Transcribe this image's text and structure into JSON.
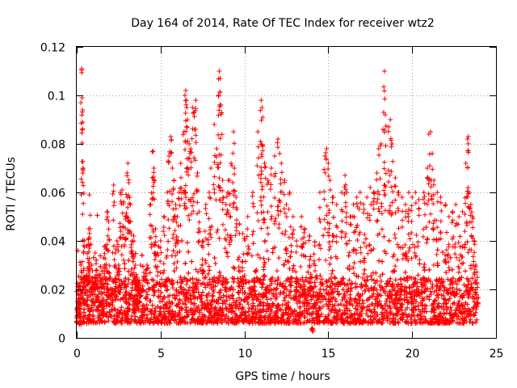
{
  "chart_data": {
    "type": "scatter",
    "title": "Day 164 of 2014, Rate Of TEC Index for receiver wtz2",
    "xlabel": "GPS time / hours",
    "ylabel": "ROTI / TECUs",
    "xlim": [
      0,
      25
    ],
    "ylim": [
      0,
      0.12
    ],
    "x_ticks": [
      0,
      5,
      10,
      15,
      20,
      25
    ],
    "y_ticks": [
      0,
      0.02,
      0.04,
      0.06,
      0.08,
      0.1,
      0.12
    ],
    "x_tick_labels": [
      "0",
      "5",
      "10",
      "15",
      "20",
      "25"
    ],
    "y_tick_labels": [
      "0",
      "0.02",
      "0.04",
      "0.06",
      "0.08",
      "0.1",
      "0.12"
    ],
    "grid": true,
    "marker": "plus",
    "marker_color": "#ff0000",
    "x_range_of_data": [
      0,
      23.9
    ],
    "baseline_band": [
      0.006,
      0.025
    ],
    "series": [
      {
        "name": "ROTI",
        "color": "#ff0000",
        "points": [
          [
            0.05,
            0.012
          ],
          [
            0.1,
            0.018
          ],
          [
            0.15,
            0.022
          ],
          [
            0.2,
            0.009
          ],
          [
            0.25,
            0.03
          ],
          [
            0.3,
            0.111
          ],
          [
            0.32,
            0.099
          ],
          [
            0.35,
            0.094
          ],
          [
            0.38,
            0.07
          ],
          [
            0.4,
            0.035
          ],
          [
            0.45,
            0.04
          ],
          [
            0.5,
            0.025
          ],
          [
            0.6,
            0.038
          ],
          [
            0.7,
            0.041
          ],
          [
            0.75,
            0.059
          ],
          [
            0.8,
            0.045
          ],
          [
            0.9,
            0.03
          ],
          [
            1.0,
            0.022
          ],
          [
            1.1,
            0.035
          ],
          [
            1.2,
            0.028
          ],
          [
            1.3,
            0.018
          ],
          [
            1.4,
            0.026
          ],
          [
            1.5,
            0.021
          ],
          [
            1.6,
            0.033
          ],
          [
            1.7,
            0.038
          ],
          [
            1.8,
            0.052
          ],
          [
            1.9,
            0.048
          ],
          [
            2.0,
            0.025
          ],
          [
            2.1,
            0.02
          ],
          [
            2.2,
            0.063
          ],
          [
            2.3,
            0.035
          ],
          [
            2.4,
            0.04
          ],
          [
            2.5,
            0.03
          ],
          [
            2.6,
            0.06
          ],
          [
            2.7,
            0.061
          ],
          [
            2.8,
            0.056
          ],
          [
            2.9,
            0.05
          ],
          [
            3.0,
            0.068
          ],
          [
            3.05,
            0.072
          ],
          [
            3.1,
            0.064
          ],
          [
            3.2,
            0.055
          ],
          [
            3.3,
            0.04
          ],
          [
            3.4,
            0.042
          ],
          [
            3.5,
            0.03
          ],
          [
            3.6,
            0.025
          ],
          [
            3.7,
            0.022
          ],
          [
            3.8,
            0.03
          ],
          [
            4.0,
            0.027
          ],
          [
            4.2,
            0.03
          ],
          [
            4.4,
            0.055
          ],
          [
            4.5,
            0.066
          ],
          [
            4.55,
            0.077
          ],
          [
            4.6,
            0.07
          ],
          [
            4.7,
            0.045
          ],
          [
            4.8,
            0.035
          ],
          [
            5.0,
            0.04
          ],
          [
            5.2,
            0.05
          ],
          [
            5.4,
            0.06
          ],
          [
            5.5,
            0.075
          ],
          [
            5.6,
            0.083
          ],
          [
            5.7,
            0.07
          ],
          [
            5.8,
            0.065
          ],
          [
            5.9,
            0.055
          ],
          [
            6.0,
            0.05
          ],
          [
            6.1,
            0.06
          ],
          [
            6.2,
            0.072
          ],
          [
            6.4,
            0.085
          ],
          [
            6.45,
            0.1
          ],
          [
            6.5,
            0.102
          ],
          [
            6.55,
            0.098
          ],
          [
            6.6,
            0.09
          ],
          [
            6.7,
            0.08
          ],
          [
            6.8,
            0.078
          ],
          [
            6.9,
            0.095
          ],
          [
            7.0,
            0.093
          ],
          [
            7.1,
            0.098
          ],
          [
            7.2,
            0.068
          ],
          [
            7.3,
            0.052
          ],
          [
            7.5,
            0.04
          ],
          [
            7.7,
            0.055
          ],
          [
            7.9,
            0.06
          ],
          [
            8.0,
            0.07
          ],
          [
            8.2,
            0.088
          ],
          [
            8.35,
            0.078
          ],
          [
            8.45,
            0.1
          ],
          [
            8.5,
            0.11
          ],
          [
            8.55,
            0.107
          ],
          [
            8.6,
            0.096
          ],
          [
            8.7,
            0.065
          ],
          [
            8.9,
            0.055
          ],
          [
            9.0,
            0.06
          ],
          [
            9.1,
            0.065
          ],
          [
            9.2,
            0.072
          ],
          [
            9.35,
            0.085
          ],
          [
            9.4,
            0.07
          ],
          [
            9.5,
            0.058
          ],
          [
            9.7,
            0.047
          ],
          [
            9.9,
            0.043
          ],
          [
            10.2,
            0.05
          ],
          [
            10.5,
            0.06
          ],
          [
            10.8,
            0.085
          ],
          [
            10.95,
            0.081
          ],
          [
            11.0,
            0.098
          ],
          [
            11.05,
            0.095
          ],
          [
            11.1,
            0.079
          ],
          [
            11.2,
            0.072
          ],
          [
            11.4,
            0.065
          ],
          [
            11.6,
            0.07
          ],
          [
            11.8,
            0.075
          ],
          [
            12.0,
            0.082
          ],
          [
            12.1,
            0.076
          ],
          [
            12.2,
            0.072
          ],
          [
            12.4,
            0.065
          ],
          [
            12.5,
            0.055
          ],
          [
            12.7,
            0.06
          ],
          [
            12.9,
            0.05
          ],
          [
            13.1,
            0.04
          ],
          [
            13.4,
            0.05
          ],
          [
            13.6,
            0.045
          ],
          [
            13.9,
            0.042
          ],
          [
            14.2,
            0.038
          ],
          [
            14.5,
            0.06
          ],
          [
            14.8,
            0.075
          ],
          [
            14.9,
            0.078
          ],
          [
            15.0,
            0.072
          ],
          [
            15.1,
            0.065
          ],
          [
            15.3,
            0.058
          ],
          [
            15.5,
            0.055
          ],
          [
            15.8,
            0.06
          ],
          [
            16.0,
            0.067
          ],
          [
            16.1,
            0.06
          ],
          [
            16.3,
            0.05
          ],
          [
            16.5,
            0.055
          ],
          [
            16.7,
            0.058
          ],
          [
            16.9,
            0.06
          ],
          [
            17.1,
            0.055
          ],
          [
            17.3,
            0.058
          ],
          [
            17.5,
            0.062
          ],
          [
            17.7,
            0.06
          ],
          [
            17.9,
            0.068
          ],
          [
            18.0,
            0.078
          ],
          [
            18.15,
            0.08
          ],
          [
            18.3,
            0.093
          ],
          [
            18.35,
            0.11
          ],
          [
            18.4,
            0.092
          ],
          [
            18.6,
            0.087
          ],
          [
            18.7,
            0.09
          ],
          [
            18.8,
            0.08
          ],
          [
            19.0,
            0.066
          ],
          [
            19.2,
            0.06
          ],
          [
            19.4,
            0.058
          ],
          [
            19.6,
            0.055
          ],
          [
            19.8,
            0.06
          ],
          [
            20.0,
            0.058
          ],
          [
            20.2,
            0.06
          ],
          [
            20.4,
            0.057
          ],
          [
            20.7,
            0.06
          ],
          [
            20.9,
            0.07
          ],
          [
            21.0,
            0.084
          ],
          [
            21.1,
            0.085
          ],
          [
            21.2,
            0.076
          ],
          [
            21.3,
            0.065
          ],
          [
            21.5,
            0.06
          ],
          [
            21.7,
            0.058
          ],
          [
            22.0,
            0.055
          ],
          [
            22.2,
            0.05
          ],
          [
            22.4,
            0.052
          ],
          [
            22.6,
            0.055
          ],
          [
            22.8,
            0.05
          ],
          [
            23.0,
            0.052
          ],
          [
            23.2,
            0.072
          ],
          [
            23.3,
            0.082
          ],
          [
            23.35,
            0.083
          ],
          [
            23.4,
            0.06
          ],
          [
            23.5,
            0.055
          ],
          [
            23.6,
            0.05
          ],
          [
            23.7,
            0.04
          ],
          [
            23.8,
            0.03
          ],
          [
            23.9,
            0.025
          ],
          [
            14.05,
            0.004
          ]
        ]
      }
    ]
  }
}
